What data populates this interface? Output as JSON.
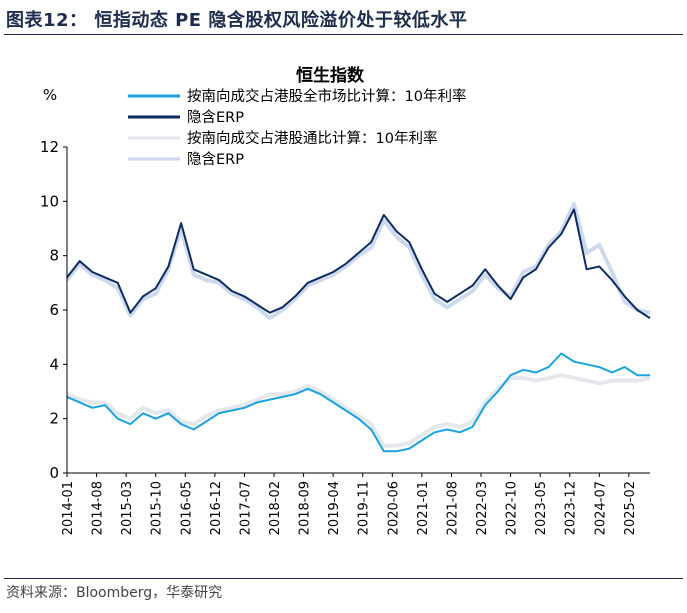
{
  "figure": {
    "title": "图表12：  恒指动态 PE 隐含股权风险溢价处于较低水平",
    "source": "资料来源：Bloomberg，华泰研究"
  },
  "chart_data": {
    "type": "line",
    "title": "恒生指数",
    "ylabel": "%",
    "ylim": [
      0,
      12
    ],
    "yticks": [
      0,
      2,
      4,
      6,
      8,
      10,
      12
    ],
    "xlim": [
      "2014-01",
      "2025-07"
    ],
    "xticks": [
      "2014-01",
      "2014-08",
      "2015-03",
      "2015-10",
      "2016-05",
      "2016-12",
      "2017-07",
      "2018-02",
      "2018-09",
      "2019-04",
      "2019-11",
      "2020-06",
      "2021-01",
      "2021-08",
      "2022-03",
      "2022-10",
      "2023-05",
      "2023-12",
      "2024-07",
      "2025-02"
    ],
    "grid": false,
    "legend_position": "top-left",
    "series": [
      {
        "name": "按南向成交占港股全市场比计算：10年利率",
        "color": "#1aa3de",
        "points": [
          [
            "2014-01",
            2.8
          ],
          [
            "2014-04",
            2.6
          ],
          [
            "2014-07",
            2.4
          ],
          [
            "2014-10",
            2.5
          ],
          [
            "2015-01",
            2.0
          ],
          [
            "2015-04",
            1.8
          ],
          [
            "2015-07",
            2.2
          ],
          [
            "2015-10",
            2.0
          ],
          [
            "2016-01",
            2.2
          ],
          [
            "2016-04",
            1.8
          ],
          [
            "2016-07",
            1.6
          ],
          [
            "2016-10",
            1.9
          ],
          [
            "2017-01",
            2.2
          ],
          [
            "2017-04",
            2.3
          ],
          [
            "2017-07",
            2.4
          ],
          [
            "2017-10",
            2.6
          ],
          [
            "2018-01",
            2.7
          ],
          [
            "2018-04",
            2.8
          ],
          [
            "2018-07",
            2.9
          ],
          [
            "2018-10",
            3.1
          ],
          [
            "2019-01",
            2.9
          ],
          [
            "2019-04",
            2.6
          ],
          [
            "2019-07",
            2.3
          ],
          [
            "2019-10",
            2.0
          ],
          [
            "2020-01",
            1.6
          ],
          [
            "2020-04",
            0.8
          ],
          [
            "2020-07",
            0.8
          ],
          [
            "2020-10",
            0.9
          ],
          [
            "2021-01",
            1.2
          ],
          [
            "2021-04",
            1.5
          ],
          [
            "2021-07",
            1.6
          ],
          [
            "2021-10",
            1.5
          ],
          [
            "2022-01",
            1.7
          ],
          [
            "2022-04",
            2.5
          ],
          [
            "2022-07",
            3.0
          ],
          [
            "2022-10",
            3.6
          ],
          [
            "2023-01",
            3.8
          ],
          [
            "2023-04",
            3.7
          ],
          [
            "2023-07",
            3.9
          ],
          [
            "2023-10",
            4.4
          ],
          [
            "2024-01",
            4.1
          ],
          [
            "2024-04",
            4.0
          ],
          [
            "2024-07",
            3.9
          ],
          [
            "2024-10",
            3.7
          ],
          [
            "2025-01",
            3.9
          ],
          [
            "2025-04",
            3.6
          ],
          [
            "2025-07",
            3.6
          ]
        ]
      },
      {
        "name": "隐含ERP",
        "color": "#0c2c62",
        "points": [
          [
            "2014-01",
            7.2
          ],
          [
            "2014-04",
            7.8
          ],
          [
            "2014-07",
            7.4
          ],
          [
            "2014-10",
            7.2
          ],
          [
            "2015-01",
            7.0
          ],
          [
            "2015-04",
            5.9
          ],
          [
            "2015-07",
            6.5
          ],
          [
            "2015-10",
            6.8
          ],
          [
            "2016-01",
            7.6
          ],
          [
            "2016-04",
            9.2
          ],
          [
            "2016-07",
            7.5
          ],
          [
            "2016-10",
            7.3
          ],
          [
            "2017-01",
            7.1
          ],
          [
            "2017-04",
            6.7
          ],
          [
            "2017-07",
            6.5
          ],
          [
            "2017-10",
            6.2
          ],
          [
            "2018-01",
            5.9
          ],
          [
            "2018-04",
            6.1
          ],
          [
            "2018-07",
            6.5
          ],
          [
            "2018-10",
            7.0
          ],
          [
            "2019-01",
            7.2
          ],
          [
            "2019-04",
            7.4
          ],
          [
            "2019-07",
            7.7
          ],
          [
            "2019-10",
            8.1
          ],
          [
            "2020-01",
            8.5
          ],
          [
            "2020-04",
            9.5
          ],
          [
            "2020-07",
            8.9
          ],
          [
            "2020-10",
            8.5
          ],
          [
            "2021-01",
            7.5
          ],
          [
            "2021-04",
            6.6
          ],
          [
            "2021-07",
            6.3
          ],
          [
            "2021-10",
            6.6
          ],
          [
            "2022-01",
            6.9
          ],
          [
            "2022-04",
            7.5
          ],
          [
            "2022-07",
            6.9
          ],
          [
            "2022-10",
            6.4
          ],
          [
            "2023-01",
            7.2
          ],
          [
            "2023-04",
            7.5
          ],
          [
            "2023-07",
            8.3
          ],
          [
            "2023-10",
            8.8
          ],
          [
            "2024-01",
            9.7
          ],
          [
            "2024-04",
            7.5
          ],
          [
            "2024-07",
            7.6
          ],
          [
            "2024-10",
            7.1
          ],
          [
            "2025-01",
            6.5
          ],
          [
            "2025-04",
            6.0
          ],
          [
            "2025-07",
            5.7
          ]
        ]
      },
      {
        "name": "按南向成交占港股通比计算：10年利率",
        "color": "#e4e7ec",
        "points": [
          [
            "2014-01",
            2.9
          ],
          [
            "2014-04",
            2.7
          ],
          [
            "2014-07",
            2.6
          ],
          [
            "2014-10",
            2.6
          ],
          [
            "2015-01",
            2.2
          ],
          [
            "2015-04",
            2.0
          ],
          [
            "2015-07",
            2.4
          ],
          [
            "2015-10",
            2.2
          ],
          [
            "2016-01",
            2.3
          ],
          [
            "2016-04",
            1.9
          ],
          [
            "2016-07",
            1.8
          ],
          [
            "2016-10",
            2.1
          ],
          [
            "2017-01",
            2.3
          ],
          [
            "2017-04",
            2.4
          ],
          [
            "2017-07",
            2.5
          ],
          [
            "2017-10",
            2.7
          ],
          [
            "2018-01",
            2.9
          ],
          [
            "2018-04",
            2.9
          ],
          [
            "2018-07",
            3.0
          ],
          [
            "2018-10",
            3.2
          ],
          [
            "2019-01",
            3.0
          ],
          [
            "2019-04",
            2.7
          ],
          [
            "2019-07",
            2.4
          ],
          [
            "2019-10",
            2.1
          ],
          [
            "2020-01",
            1.8
          ],
          [
            "2020-04",
            1.0
          ],
          [
            "2020-07",
            1.0
          ],
          [
            "2020-10",
            1.1
          ],
          [
            "2021-01",
            1.4
          ],
          [
            "2021-04",
            1.7
          ],
          [
            "2021-07",
            1.8
          ],
          [
            "2021-10",
            1.7
          ],
          [
            "2022-01",
            1.9
          ],
          [
            "2022-04",
            2.6
          ],
          [
            "2022-07",
            3.1
          ],
          [
            "2022-10",
            3.5
          ],
          [
            "2023-01",
            3.5
          ],
          [
            "2023-04",
            3.4
          ],
          [
            "2023-07",
            3.5
          ],
          [
            "2023-10",
            3.6
          ],
          [
            "2024-01",
            3.5
          ],
          [
            "2024-04",
            3.4
          ],
          [
            "2024-07",
            3.3
          ],
          [
            "2024-10",
            3.4
          ],
          [
            "2025-01",
            3.4
          ],
          [
            "2025-04",
            3.4
          ],
          [
            "2025-07",
            3.5
          ]
        ]
      },
      {
        "name": "隐含ERP",
        "color": "#cdd9ec",
        "points": [
          [
            "2014-01",
            7.1
          ],
          [
            "2014-04",
            7.7
          ],
          [
            "2014-07",
            7.3
          ],
          [
            "2014-10",
            7.1
          ],
          [
            "2015-01",
            6.8
          ],
          [
            "2015-04",
            5.8
          ],
          [
            "2015-07",
            6.4
          ],
          [
            "2015-10",
            6.6
          ],
          [
            "2016-01",
            7.5
          ],
          [
            "2016-04",
            9.0
          ],
          [
            "2016-07",
            7.3
          ],
          [
            "2016-10",
            7.1
          ],
          [
            "2017-01",
            7.0
          ],
          [
            "2017-04",
            6.6
          ],
          [
            "2017-07",
            6.4
          ],
          [
            "2017-10",
            6.1
          ],
          [
            "2018-01",
            5.7
          ],
          [
            "2018-04",
            6.0
          ],
          [
            "2018-07",
            6.4
          ],
          [
            "2018-10",
            6.9
          ],
          [
            "2019-01",
            7.1
          ],
          [
            "2019-04",
            7.3
          ],
          [
            "2019-07",
            7.6
          ],
          [
            "2019-10",
            8.0
          ],
          [
            "2020-01",
            8.3
          ],
          [
            "2020-04",
            9.3
          ],
          [
            "2020-07",
            8.7
          ],
          [
            "2020-10",
            8.3
          ],
          [
            "2021-01",
            7.3
          ],
          [
            "2021-04",
            6.4
          ],
          [
            "2021-07",
            6.1
          ],
          [
            "2021-10",
            6.4
          ],
          [
            "2022-01",
            6.7
          ],
          [
            "2022-04",
            7.3
          ],
          [
            "2022-07",
            6.8
          ],
          [
            "2022-10",
            6.5
          ],
          [
            "2023-01",
            7.4
          ],
          [
            "2023-04",
            7.6
          ],
          [
            "2023-07",
            8.4
          ],
          [
            "2023-10",
            8.9
          ],
          [
            "2024-01",
            9.9
          ],
          [
            "2024-04",
            8.1
          ],
          [
            "2024-07",
            8.4
          ],
          [
            "2024-10",
            7.4
          ],
          [
            "2025-01",
            6.3
          ],
          [
            "2025-04",
            6.0
          ],
          [
            "2025-07",
            5.9
          ]
        ]
      }
    ]
  }
}
